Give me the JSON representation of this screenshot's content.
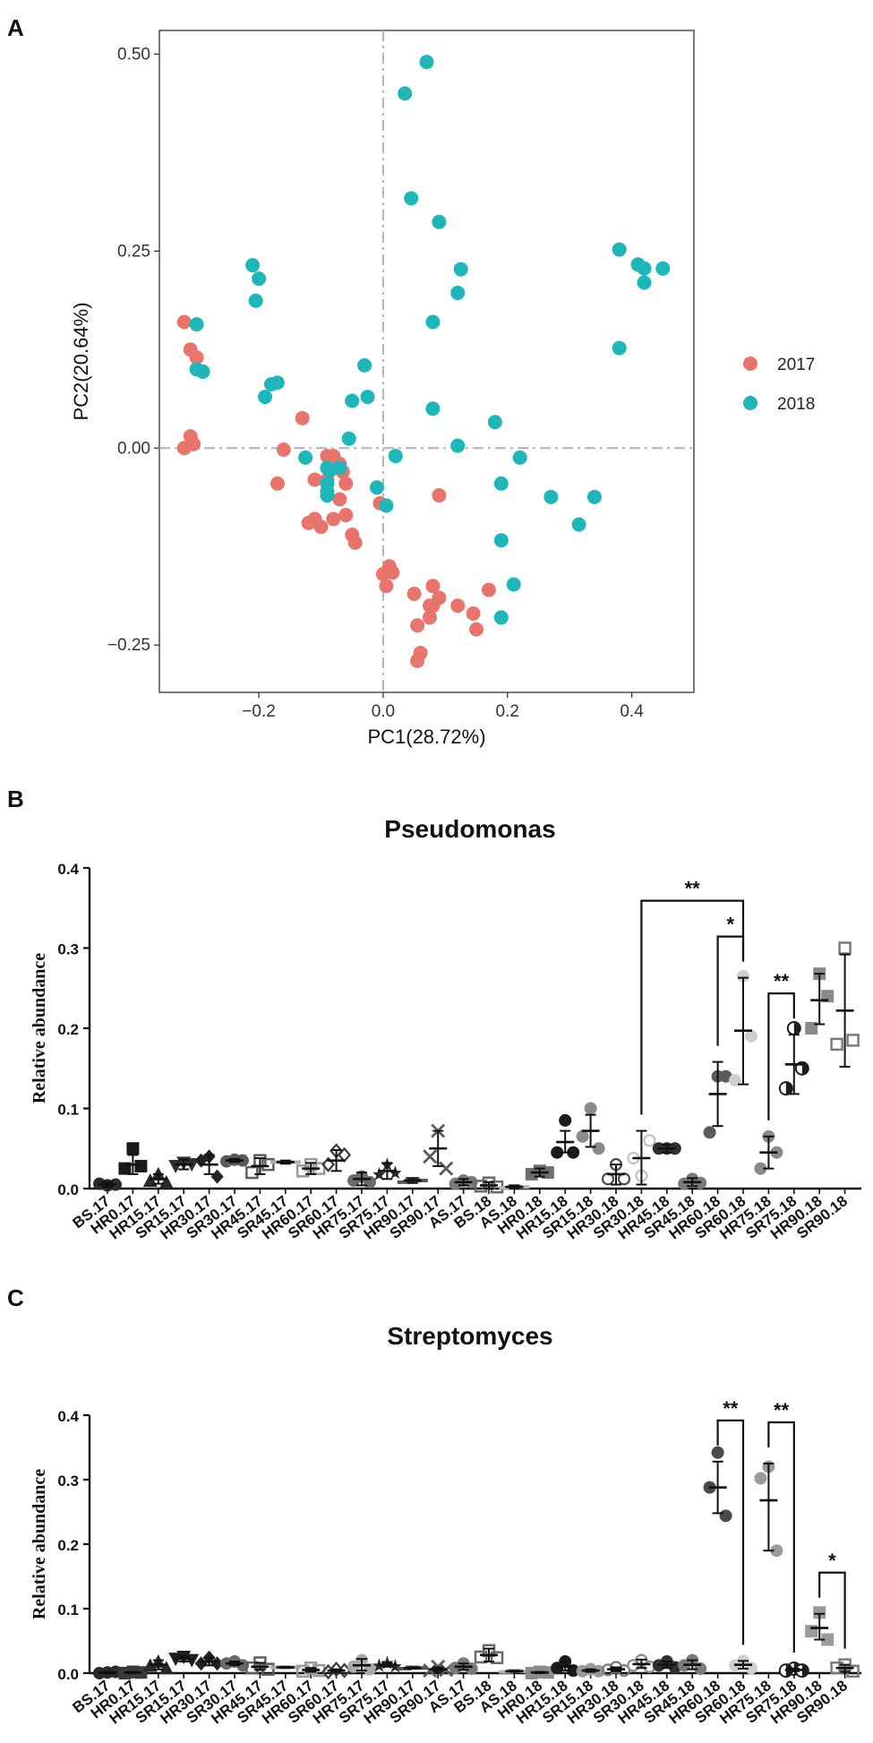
{
  "chart_data": [
    {
      "panel": "A",
      "type": "scatter",
      "title": "",
      "xlabel": "PC1(28.72%)",
      "ylabel": "PC2(20.64%)",
      "xlim": [
        -0.36,
        0.5
      ],
      "ylim": [
        -0.31,
        0.53
      ],
      "xticks": [
        -0.2,
        0.0,
        0.2,
        0.4
      ],
      "xtick_labels": [
        "−0.2",
        "0.0",
        "0.2",
        "0.4"
      ],
      "yticks": [
        -0.25,
        0.0,
        0.25,
        0.5
      ],
      "ytick_labels": [
        "−0.25",
        "0.00",
        "0.25",
        "0.50"
      ],
      "grid": false,
      "reference_lines": "dashed lines at x = 0 and y = 0",
      "legend_position": "right",
      "series": [
        {
          "name": "2017",
          "color": "#E8746B",
          "points": [
            [
              -0.32,
              0.16
            ],
            [
              -0.31,
              0.125
            ],
            [
              -0.3,
              0.115
            ],
            [
              -0.31,
              0.015
            ],
            [
              -0.305,
              0.005
            ],
            [
              -0.32,
              0.0
            ],
            [
              -0.13,
              0.038
            ],
            [
              -0.16,
              -0.002
            ],
            [
              -0.09,
              -0.01
            ],
            [
              -0.08,
              -0.01
            ],
            [
              -0.07,
              -0.02
            ],
            [
              -0.17,
              -0.045
            ],
            [
              -0.11,
              -0.04
            ],
            [
              -0.09,
              -0.04
            ],
            [
              -0.06,
              -0.045
            ],
            [
              -0.065,
              -0.03
            ],
            [
              -0.12,
              -0.095
            ],
            [
              -0.11,
              -0.09
            ],
            [
              -0.1,
              -0.1
            ],
            [
              -0.08,
              -0.09
            ],
            [
              -0.06,
              -0.085
            ],
            [
              -0.05,
              -0.11
            ],
            [
              -0.045,
              -0.12
            ],
            [
              -0.07,
              -0.065
            ],
            [
              -0.005,
              -0.07
            ],
            [
              0.01,
              -0.15
            ],
            [
              0.0,
              -0.16
            ],
            [
              0.005,
              -0.175
            ],
            [
              0.015,
              -0.158
            ],
            [
              0.05,
              -0.185
            ],
            [
              0.08,
              -0.175
            ],
            [
              0.09,
              -0.19
            ],
            [
              0.08,
              -0.2
            ],
            [
              0.075,
              -0.2
            ],
            [
              0.06,
              -0.26
            ],
            [
              0.055,
              -0.27
            ],
            [
              0.055,
              -0.225
            ],
            [
              0.075,
              -0.215
            ],
            [
              0.09,
              -0.06
            ],
            [
              0.12,
              -0.2
            ],
            [
              0.145,
              -0.21
            ],
            [
              0.15,
              -0.23
            ],
            [
              0.17,
              -0.18
            ]
          ]
        },
        {
          "name": "2018",
          "color": "#1EB6B8",
          "points": [
            [
              0.07,
              0.49
            ],
            [
              0.035,
              0.45
            ],
            [
              0.045,
              0.317
            ],
            [
              0.09,
              0.287
            ],
            [
              0.125,
              0.227
            ],
            [
              0.12,
              0.197
            ],
            [
              0.08,
              0.16
            ],
            [
              0.08,
              0.05
            ],
            [
              0.12,
              0.003
            ],
            [
              0.18,
              0.033
            ],
            [
              0.22,
              -0.012
            ],
            [
              0.19,
              -0.045
            ],
            [
              0.19,
              -0.117
            ],
            [
              0.27,
              -0.062
            ],
            [
              0.315,
              -0.097
            ],
            [
              0.34,
              -0.062
            ],
            [
              0.21,
              -0.173
            ],
            [
              0.19,
              -0.215
            ],
            [
              -0.21,
              0.232
            ],
            [
              -0.205,
              0.187
            ],
            [
              -0.2,
              0.215
            ],
            [
              -0.19,
              0.065
            ],
            [
              -0.18,
              0.081
            ],
            [
              -0.17,
              0.083
            ],
            [
              -0.3,
              0.157
            ],
            [
              -0.3,
              0.1
            ],
            [
              -0.29,
              0.097
            ],
            [
              -0.03,
              0.105
            ],
            [
              -0.05,
              0.06
            ],
            [
              -0.025,
              0.065
            ],
            [
              -0.055,
              0.012
            ],
            [
              -0.125,
              -0.012
            ],
            [
              -0.09,
              -0.025
            ],
            [
              -0.085,
              -0.028
            ],
            [
              -0.09,
              -0.055
            ],
            [
              -0.09,
              -0.06
            ],
            [
              -0.09,
              -0.045
            ],
            [
              0.02,
              -0.01
            ],
            [
              -0.01,
              -0.05
            ],
            [
              0.005,
              -0.073
            ],
            [
              0.38,
              0.252
            ],
            [
              0.41,
              0.233
            ],
            [
              0.42,
              0.228
            ],
            [
              0.42,
              0.21
            ],
            [
              0.45,
              0.228
            ],
            [
              0.38,
              0.127
            ],
            [
              -0.07,
              -0.025
            ]
          ]
        }
      ],
      "legend": [
        "2017",
        "2018"
      ]
    },
    {
      "panel": "B",
      "type": "scatter",
      "title": "Pseudomonas",
      "xlabel": "",
      "ylabel": "Relative abundance",
      "ylim": [
        0.0,
        0.4
      ],
      "yticks": [
        0.0,
        0.1,
        0.2,
        0.3,
        0.4
      ],
      "ytick_labels": [
        "0.0",
        "0.1",
        "0.2",
        "0.3",
        "0.4"
      ],
      "categories": [
        "BS.17",
        "HR0.17",
        "HR15.17",
        "SR15.17",
        "HR30.17",
        "SR30.17",
        "HR45.17",
        "SR45.17",
        "HR60.17",
        "SR60.17",
        "HR75.17",
        "SR75.17",
        "HR90.17",
        "SR90.17",
        "AS.17",
        "BS.18",
        "AS.18",
        "HR0.18",
        "HR15.18",
        "SR15.18",
        "HR30.18",
        "SR30.18",
        "HR45.18",
        "SR45.18",
        "HR60.18",
        "SR60.18",
        "HR75.18",
        "SR75.18",
        "HR90.18",
        "SR90.18"
      ],
      "means": [
        0.005,
        0.03,
        0.012,
        0.03,
        0.03,
        0.035,
        0.028,
        0.033,
        0.025,
        0.035,
        0.012,
        0.022,
        0.01,
        0.05,
        0.008,
        0.004,
        0.002,
        0.02,
        0.058,
        0.072,
        0.018,
        0.038,
        0.05,
        0.008,
        0.118,
        0.197,
        0.045,
        0.155,
        0.235,
        0.222
      ],
      "sd_low": [
        0.002,
        0.018,
        0.006,
        0.024,
        0.018,
        0.033,
        0.018,
        0.031,
        0.018,
        0.022,
        0.004,
        0.012,
        0.007,
        0.028,
        0.004,
        0.0,
        0.0,
        0.015,
        0.045,
        0.052,
        0.005,
        0.005,
        0.045,
        0.003,
        0.078,
        0.13,
        0.025,
        0.118,
        0.205,
        0.152
      ],
      "sd_high": [
        0.008,
        0.042,
        0.018,
        0.036,
        0.042,
        0.037,
        0.038,
        0.035,
        0.032,
        0.048,
        0.02,
        0.032,
        0.013,
        0.072,
        0.012,
        0.008,
        0.004,
        0.025,
        0.072,
        0.092,
        0.03,
        0.072,
        0.055,
        0.013,
        0.158,
        0.263,
        0.065,
        0.192,
        0.268,
        0.292
      ],
      "points": [
        [
          0.004,
          0.006,
          0.005
        ],
        [
          0.05,
          0.025,
          0.028
        ],
        [
          0.018,
          0.01,
          0.008
        ],
        [
          0.032,
          0.028,
          0.03
        ],
        [
          0.04,
          0.035,
          0.015
        ],
        [
          0.036,
          0.034,
          0.035
        ],
        [
          0.035,
          0.02,
          0.03
        ],
        [
          0.033,
          0.033,
          0.033
        ],
        [
          0.03,
          0.022,
          0.025
        ],
        [
          0.047,
          0.03,
          0.042
        ],
        [
          0.015,
          0.01,
          0.008
        ],
        [
          0.03,
          0.018,
          0.02
        ],
        [
          0.012,
          0.008,
          0.01
        ],
        [
          0.072,
          0.04,
          0.025
        ],
        [
          0.01,
          0.006,
          0.008
        ],
        [
          0.007,
          0.003,
          0.002
        ],
        [
          0.003,
          0.001,
          0.002
        ],
        [
          0.022,
          0.018,
          0.02
        ],
        [
          0.085,
          0.045,
          0.045
        ],
        [
          0.1,
          0.065,
          0.05
        ],
        [
          0.03,
          0.012,
          0.012
        ],
        [
          0.016,
          0.038,
          0.06
        ],
        [
          0.05,
          0.05,
          0.05
        ],
        [
          0.012,
          0.006,
          0.007
        ],
        [
          0.14,
          0.07,
          0.14
        ],
        [
          0.265,
          0.135,
          0.19
        ],
        [
          0.065,
          0.025,
          0.045
        ],
        [
          0.2,
          0.125,
          0.15
        ],
        [
          0.268,
          0.2,
          0.24
        ],
        [
          0.3,
          0.18,
          0.185
        ]
      ],
      "marker_colors": [
        "#2b2b2b",
        "#1a1a1a",
        "#2a2a2a",
        "#303030",
        "#222222",
        "#5a5a5a",
        "#5e5e5e",
        "#ababab",
        "#9a9a9a",
        "#3a3a3a",
        "#6a6a6a",
        "#2a2a2a",
        "#555555",
        "#5a5a5a",
        "#7a7a7a",
        "#6a6a6a",
        "#b5b5b5",
        "#6e6e6e",
        "#1a1a1a",
        "#8a8a8a",
        "#4a4a4a",
        "#c2c2c2",
        "#2f2f2f",
        "#7a7a7a",
        "#5a5a5a",
        "#cfcfcf",
        "#8a8a8a",
        "#1e1e1e",
        "#8a8a8a",
        "#7a7a7a"
      ],
      "significance": [
        {
          "from": "SR30.18",
          "to": "SR60.18",
          "label": "**"
        },
        {
          "from": "HR60.18",
          "to": "SR60.18",
          "label": "*"
        },
        {
          "from": "HR75.18",
          "to": "SR75.18",
          "label": "**"
        }
      ]
    },
    {
      "panel": "C",
      "type": "scatter",
      "title": "Streptomyces",
      "xlabel": "",
      "ylabel": "Relative abundance",
      "ylim": [
        0.0,
        0.4
      ],
      "yticks": [
        0.0,
        0.1,
        0.2,
        0.3,
        0.4
      ],
      "ytick_labels": [
        "0.0",
        "0.1",
        "0.2",
        "0.3",
        "0.4"
      ],
      "categories": [
        "BS.17",
        "HR0.17",
        "HR15.17",
        "SR15.17",
        "HR30.17",
        "SR30.17",
        "HR45.17",
        "SR45.17",
        "HR60.17",
        "SR60.17",
        "HR75.17",
        "SR75.17",
        "HR90.17",
        "SR90.17",
        "AS.17",
        "BS.18",
        "AS.18",
        "HR0.18",
        "HR15.18",
        "SR15.18",
        "HR30.18",
        "SR30.18",
        "HR45.18",
        "SR45.18",
        "HR60.18",
        "SR60.18",
        "HR75.18",
        "SR75.18",
        "HR90.18",
        "SR90.18"
      ],
      "means": [
        0.001,
        0.001,
        0.013,
        0.022,
        0.018,
        0.015,
        0.01,
        0.009,
        0.005,
        0.004,
        0.012,
        0.013,
        0.008,
        0.006,
        0.01,
        0.028,
        0.003,
        0.001,
        0.01,
        0.004,
        0.006,
        0.014,
        0.013,
        0.013,
        0.288,
        0.013,
        0.268,
        0.005,
        0.07,
        0.008
      ],
      "sd_low": [
        0.0,
        0.0,
        0.006,
        0.018,
        0.012,
        0.012,
        0.005,
        0.008,
        0.002,
        0.002,
        0.004,
        0.01,
        0.007,
        0.003,
        0.005,
        0.018,
        0.002,
        0.0,
        0.004,
        0.002,
        0.003,
        0.008,
        0.008,
        0.006,
        0.248,
        0.007,
        0.19,
        0.003,
        0.052,
        0.002
      ],
      "sd_high": [
        0.002,
        0.002,
        0.02,
        0.026,
        0.024,
        0.018,
        0.016,
        0.01,
        0.008,
        0.006,
        0.022,
        0.016,
        0.009,
        0.009,
        0.015,
        0.038,
        0.004,
        0.002,
        0.018,
        0.006,
        0.009,
        0.021,
        0.018,
        0.02,
        0.328,
        0.019,
        0.325,
        0.007,
        0.092,
        0.013
      ],
      "points": [
        [
          0.001,
          0.0,
          0.002
        ],
        [
          0.002,
          0.0,
          0.001
        ],
        [
          0.018,
          0.012,
          0.008
        ],
        [
          0.025,
          0.022,
          0.02
        ],
        [
          0.024,
          0.015,
          0.015
        ],
        [
          0.018,
          0.015,
          0.012
        ],
        [
          0.016,
          0.008,
          0.006
        ],
        [
          0.009,
          0.009,
          0.009
        ],
        [
          0.008,
          0.003,
          0.004
        ],
        [
          0.006,
          0.002,
          0.004
        ],
        [
          0.02,
          0.01,
          0.006
        ],
        [
          0.016,
          0.012,
          0.011
        ],
        [
          0.009,
          0.007,
          0.008
        ],
        [
          0.01,
          0.004,
          0.005
        ],
        [
          0.015,
          0.008,
          0.007
        ],
        [
          0.035,
          0.025,
          0.024
        ],
        [
          0.004,
          0.002,
          0.003
        ],
        [
          0.002,
          0.0,
          0.001
        ],
        [
          0.018,
          0.008,
          0.004
        ],
        [
          0.006,
          0.003,
          0.003
        ],
        [
          0.009,
          0.005,
          0.004
        ],
        [
          0.02,
          0.012,
          0.01
        ],
        [
          0.018,
          0.012,
          0.009
        ],
        [
          0.02,
          0.012,
          0.007
        ],
        [
          0.342,
          0.288,
          0.244
        ],
        [
          0.019,
          0.012,
          0.008
        ],
        [
          0.32,
          0.302,
          0.19
        ],
        [
          0.007,
          0.004,
          0.004
        ],
        [
          0.094,
          0.065,
          0.052
        ],
        [
          0.013,
          0.008,
          0.003
        ]
      ],
      "marker_colors": [
        "#2b2b2b",
        "#3a3a3a",
        "#2a2a2a",
        "#1e1e1e",
        "#222222",
        "#6a6a6a",
        "#5e5e5e",
        "#ababab",
        "#9a9a9a",
        "#3a3a3a",
        "#aaaaaa",
        "#2a2a2a",
        "#555555",
        "#5a5a5a",
        "#7a7a7a",
        "#6a6a6a",
        "#b5b5b5",
        "#8a8a8a",
        "#1a1a1a",
        "#9a9a9a",
        "#7a7a7a",
        "#8a8a8a",
        "#2f2f2f",
        "#7a7a7a",
        "#4a4a4a",
        "#cfcfcf",
        "#9a9a9a",
        "#1e1e1e",
        "#9a9a9a",
        "#7a7a7a"
      ],
      "significance": [
        {
          "from": "HR60.18",
          "to": "SR60.18",
          "label": "**"
        },
        {
          "from": "HR75.18",
          "to": "SR75.18",
          "label": "**"
        },
        {
          "from": "HR90.18",
          "to": "SR90.18",
          "label": "*"
        }
      ]
    }
  ],
  "panel_labels": {
    "a": "A",
    "b": "B",
    "c": "C"
  }
}
